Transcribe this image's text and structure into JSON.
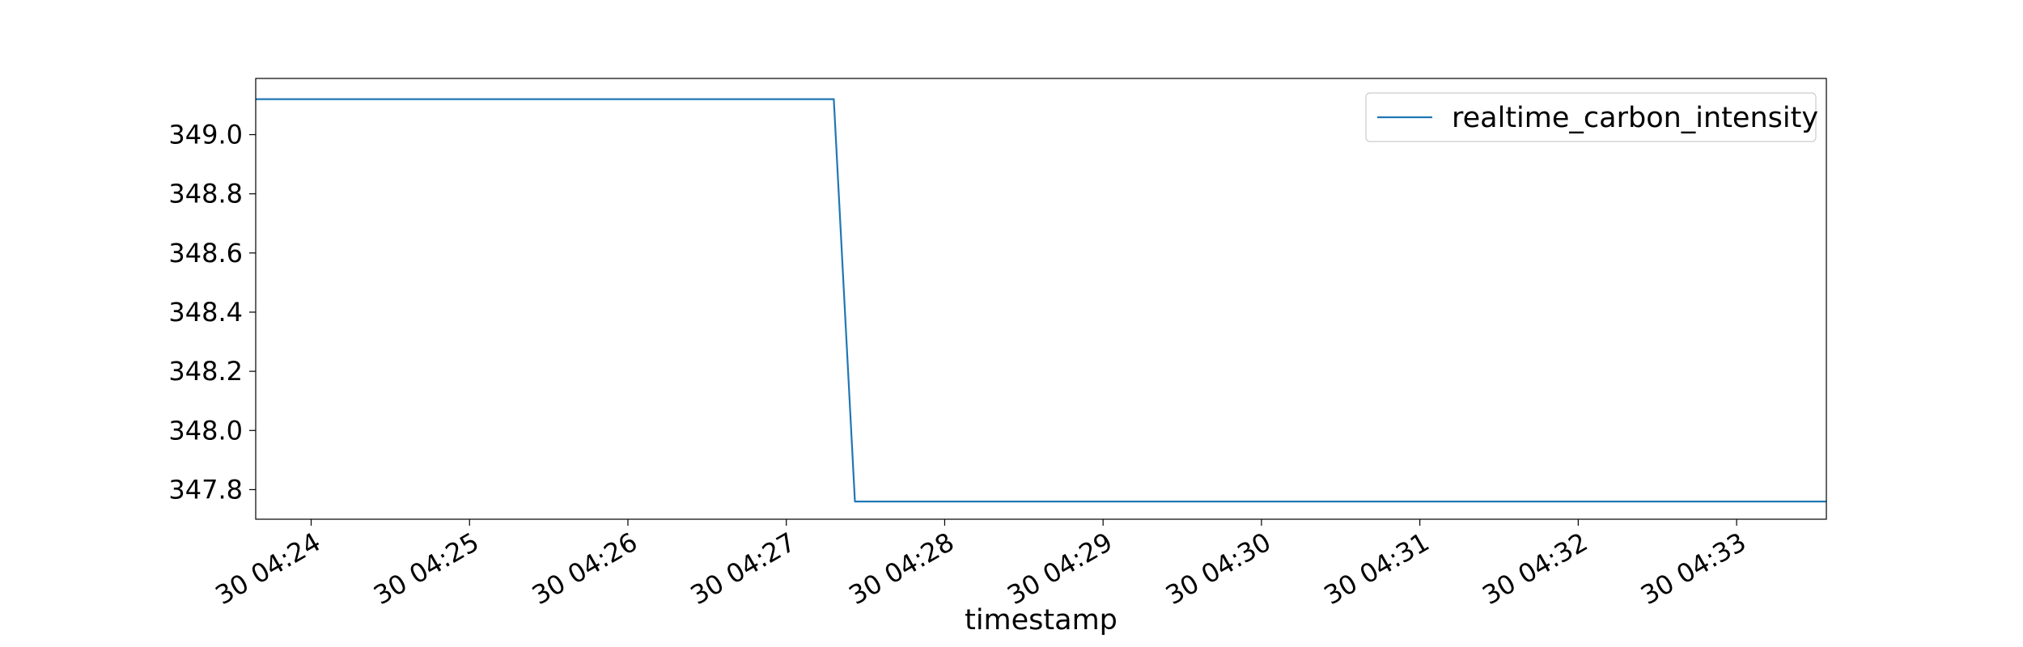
{
  "chart_data": {
    "type": "line",
    "title": "",
    "xlabel": "timestamp",
    "ylabel": "",
    "x_ticks": [
      "30 04:24",
      "30 04:25",
      "30 04:26",
      "30 04:27",
      "30 04:28",
      "30 04:29",
      "30 04:30",
      "30 04:31",
      "30 04:32",
      "30 04:33"
    ],
    "y_ticks": [
      "347.8",
      "348.0",
      "348.2",
      "348.4",
      "348.6",
      "348.8",
      "349.0"
    ],
    "xlim": [
      "04:23:39",
      "04:33:34"
    ],
    "ylim": [
      347.7,
      349.19
    ],
    "grid": false,
    "legend_position": "upper right",
    "series": [
      {
        "name": "realtime_carbon_intensity",
        "color": "#1f77b4",
        "x": [
          "04:23:39",
          "04:27:18",
          "04:27:26",
          "04:33:34"
        ],
        "y": [
          349.12,
          349.12,
          347.76,
          347.76
        ]
      }
    ]
  }
}
